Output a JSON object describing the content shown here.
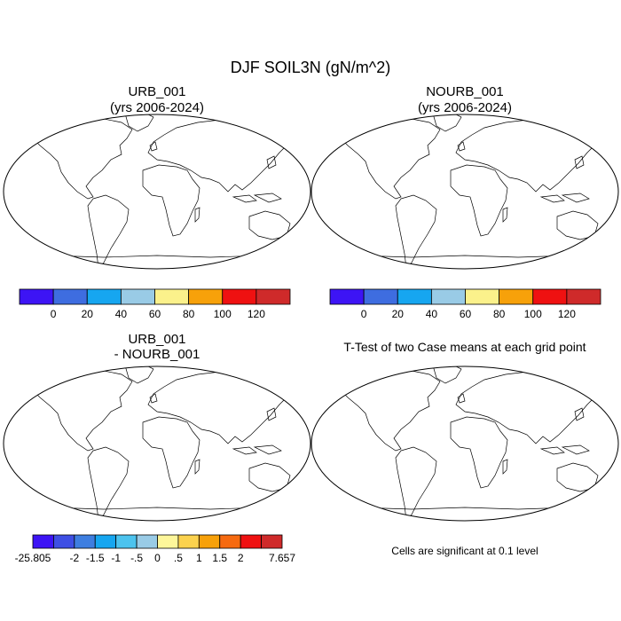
{
  "title": "DJF SOIL3N (gN/m^2)",
  "panels": [
    {
      "id": "urb",
      "title_line1": "URB_001",
      "title_line2": "(yrs 2006-2024)",
      "kind": "field"
    },
    {
      "id": "nourb",
      "title_line1": "NOURB_001",
      "title_line2": "(yrs 2006-2024)",
      "kind": "field"
    },
    {
      "id": "diff",
      "title_line1": "URB_001",
      "title_line2": "- NOURB_001",
      "kind": "diff"
    },
    {
      "id": "ttest",
      "title_line1": "T-Test of two Case means at each grid point",
      "title_line2": "",
      "kind": "ttest"
    }
  ],
  "colorbars": [
    {
      "name": "field-colorbar",
      "colors": [
        "#3d14f5",
        "#3e6de0",
        "#16a6f0",
        "#99cbe6",
        "#fbf18b",
        "#f7a10a",
        "#ef1111",
        "#cf2a2a"
      ],
      "labels": [
        "0",
        "20",
        "40",
        "60",
        "80",
        "100",
        "120"
      ]
    },
    {
      "name": "diff-colorbar",
      "colors": [
        "#3d14f5",
        "#3e4fe4",
        "#3e7ee0",
        "#16a6f0",
        "#4cc3ee",
        "#99cbe6",
        "#fdf69a",
        "#fbd24e",
        "#f7a10a",
        "#f66a10",
        "#ef1111",
        "#cf2a2a"
      ],
      "labels": [
        "-25.805",
        "-2",
        "-1.5",
        "-1",
        "-.5",
        "0",
        ".5",
        "1",
        "1.5",
        "2",
        "7.657"
      ]
    }
  ],
  "significance_note": "Cells are significant at 0.1 level",
  "colors": {
    "ocean": "#ffffff",
    "land_base_field": "#3e6de0",
    "land_base_diff": "#fdf69a",
    "significant": "#ef1111",
    "outline": "#000000"
  }
}
